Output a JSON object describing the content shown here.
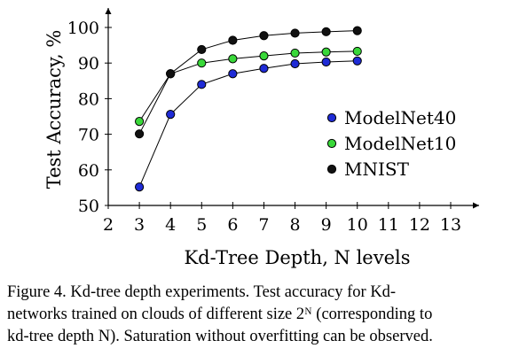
{
  "chart_data": {
    "type": "line",
    "xlabel": "Kd-Tree Depth, N levels",
    "ylabel": "Test Accuracy, %",
    "xlim": [
      2,
      13
    ],
    "ylim": [
      50,
      100
    ],
    "xticks": [
      "2",
      "3",
      "4",
      "5",
      "6",
      "7",
      "8",
      "9",
      "10",
      "11",
      "12",
      "13"
    ],
    "yticks": [
      "50",
      "60",
      "70",
      "80",
      "90",
      "100"
    ],
    "legend_placement": "center-right",
    "series": [
      {
        "name": "ModelNet40",
        "color": "#1f2bd6",
        "x": [
          3,
          4,
          5,
          6,
          7,
          8,
          9,
          10
        ],
        "y": [
          55.2,
          75.6,
          84,
          87,
          88.5,
          89.8,
          90.3,
          90.6
        ]
      },
      {
        "name": "ModelNet10",
        "color": "#39d839",
        "x": [
          3,
          4,
          5,
          6,
          7,
          8,
          9,
          10
        ],
        "y": [
          73.6,
          87,
          90,
          91.2,
          92,
          92.8,
          93.1,
          93.3
        ]
      },
      {
        "name": "MNIST",
        "color": "#111111",
        "x": [
          3,
          4,
          5,
          6,
          7,
          8,
          9,
          10
        ],
        "y": [
          70.1,
          87,
          93.8,
          96.4,
          97.7,
          98.4,
          98.8,
          99.1
        ]
      }
    ]
  },
  "caption": {
    "line1": "Figure 4. Kd-tree depth experiments.  Test accuracy for Kd-",
    "line2": "networks trained on clouds of different size 2ᴺ (corresponding to",
    "line3": "kd-tree depth N). Saturation without overfitting can be observed."
  }
}
